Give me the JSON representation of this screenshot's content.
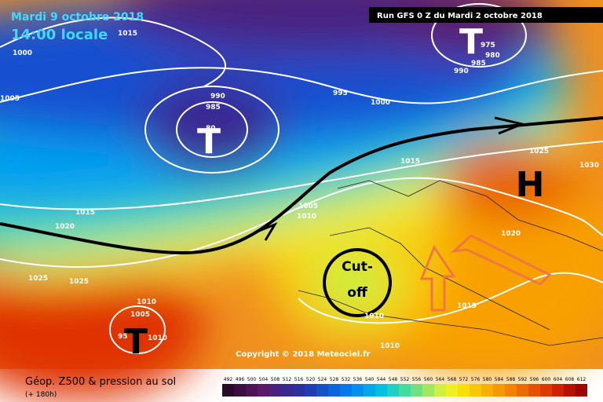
{
  "header": {
    "date": "Mardi 9 octobre 2018",
    "time": "14:00 locale",
    "run": "Run GFS 0 Z du Mardi 2 octobre 2018",
    "copyright": "Copyright © 2018 Meteociel.fr"
  },
  "footer": {
    "title": "Géop. Z500 & pression au sol",
    "lead": "(+ 180h)"
  },
  "centers": [
    "T",
    "T",
    "T",
    "H"
  ],
  "annotation": [
    "Cut-",
    "off"
  ],
  "isobar_labels": [
    "1015",
    "1000",
    "1005",
    "990",
    "985",
    "80",
    "995",
    "1000",
    "975",
    "980",
    "985",
    "990",
    "1025",
    "1030",
    "1015",
    "1005",
    "1010",
    "1015",
    "1020",
    "1020",
    "1025",
    "1025",
    "1010",
    "1005",
    "1010",
    "1015",
    "1010",
    "1010",
    "95"
  ],
  "legend": {
    "values": [
      492,
      496,
      500,
      504,
      508,
      512,
      516,
      520,
      524,
      528,
      532,
      536,
      540,
      544,
      548,
      552,
      556,
      560,
      564,
      568,
      572,
      576,
      580,
      584,
      588,
      592,
      596,
      600,
      604,
      608,
      612
    ],
    "colors": [
      "#2a0a2a",
      "#3c0f40",
      "#4e1456",
      "#5a1a6a",
      "#4a2080",
      "#3a2890",
      "#2a30a0",
      "#1e3cb4",
      "#1450c8",
      "#0a64dc",
      "#0078f0",
      "#0090f0",
      "#00a8e8",
      "#00c0e0",
      "#20d0c0",
      "#40dca0",
      "#70e080",
      "#a0e860",
      "#d0f040",
      "#f0f020",
      "#f8e000",
      "#f8c800",
      "#f8b000",
      "#f89800",
      "#f88000",
      "#f06800",
      "#e85000",
      "#e03800",
      "#d02000",
      "#b81000",
      "#a00000"
    ]
  }
}
